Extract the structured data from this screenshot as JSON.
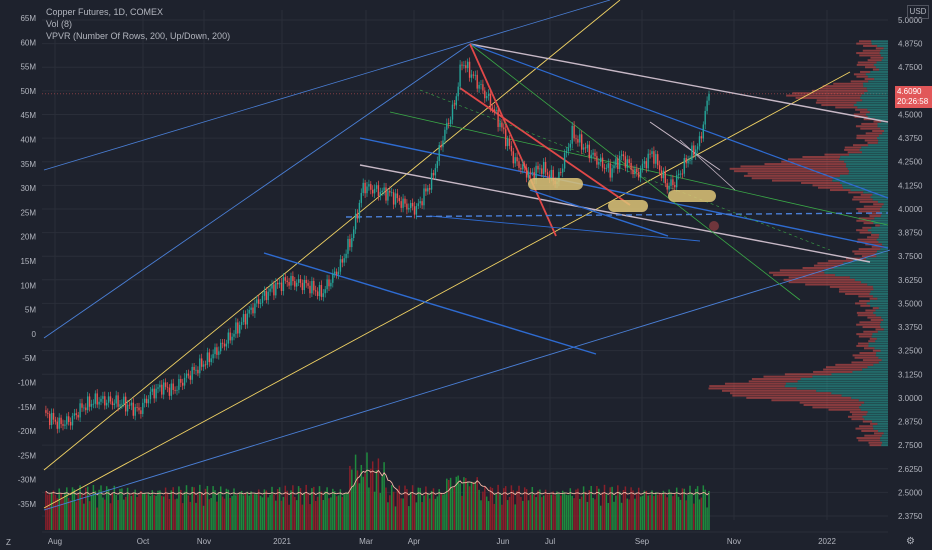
{
  "legend": {
    "title": "Copper Futures, 1D, COMEX",
    "vol": "Vol (8)",
    "vpvr": "VPVR (Number Of Rows, 200, Up/Down, 200)"
  },
  "currency": "USD",
  "last_price": {
    "value": "4.6090",
    "countdown": "20:26:58"
  },
  "corner": {
    "left": "Z"
  },
  "colors": {
    "up": "#26a69a",
    "down": "#ef5350",
    "vol_up": "#1e8a3e",
    "vol_down": "#8b1f2a",
    "vol_ma": "#f4b7a6",
    "background": "#1e222d"
  },
  "chart_data": {
    "type": "candlestick",
    "x_ticks": [
      "Aug",
      "Oct",
      "Nov",
      "2021",
      "Mar",
      "Apr",
      "Jun",
      "Jul",
      "Sep",
      "Nov",
      "2022"
    ],
    "price_ticks": [
      "5.0000",
      "4.8750",
      "4.7500",
      "4.6250",
      "4.5000",
      "4.3750",
      "4.2500",
      "4.1250",
      "4.0000",
      "3.8750",
      "3.7500",
      "3.6250",
      "3.5000",
      "3.3750",
      "3.2500",
      "3.1250",
      "3.0000",
      "2.8750",
      "2.7500",
      "2.6250",
      "2.5000",
      "2.3750"
    ],
    "volume_ticks": [
      "65M",
      "60M",
      "55M",
      "50M",
      "45M",
      "40M",
      "35M",
      "30M",
      "25M",
      "20M",
      "15M",
      "10M",
      "5M",
      "0",
      "-5M",
      "-10M",
      "-15M",
      "-20M",
      "-25M",
      "-30M",
      "-35M"
    ],
    "price_range": [
      2.35,
      5.0
    ],
    "price_path": [
      [
        0,
        2.92
      ],
      [
        8,
        2.86
      ],
      [
        14,
        2.88
      ],
      [
        20,
        2.95
      ],
      [
        28,
        2.99
      ],
      [
        36,
        2.98
      ],
      [
        42,
        2.97
      ],
      [
        50,
        2.93
      ],
      [
        56,
        3.02
      ],
      [
        62,
        3.06
      ],
      [
        68,
        3.04
      ],
      [
        76,
        3.12
      ],
      [
        86,
        3.2
      ],
      [
        98,
        3.32
      ],
      [
        110,
        3.48
      ],
      [
        120,
        3.58
      ],
      [
        128,
        3.62
      ],
      [
        138,
        3.6
      ],
      [
        146,
        3.55
      ],
      [
        156,
        3.7
      ],
      [
        162,
        3.85
      ],
      [
        168,
        4.12
      ],
      [
        174,
        4.1
      ],
      [
        182,
        4.08
      ],
      [
        190,
        4.02
      ],
      [
        196,
        4.0
      ],
      [
        204,
        4.15
      ],
      [
        210,
        4.38
      ],
      [
        216,
        4.55
      ],
      [
        220,
        4.78
      ],
      [
        226,
        4.7
      ],
      [
        234,
        4.58
      ],
      [
        240,
        4.45
      ],
      [
        248,
        4.25
      ],
      [
        256,
        4.18
      ],
      [
        262,
        4.22
      ],
      [
        270,
        4.14
      ],
      [
        278,
        4.4
      ],
      [
        284,
        4.33
      ],
      [
        292,
        4.25
      ],
      [
        298,
        4.2
      ],
      [
        304,
        4.28
      ],
      [
        312,
        4.18
      ],
      [
        320,
        4.3
      ],
      [
        328,
        4.12
      ],
      [
        332,
        4.14
      ],
      [
        338,
        4.25
      ],
      [
        345,
        4.35
      ],
      [
        350,
        4.609
      ]
    ],
    "volume_range": [
      0,
      65
    ],
    "profile_range": [
      2.75,
      4.9
    ]
  }
}
